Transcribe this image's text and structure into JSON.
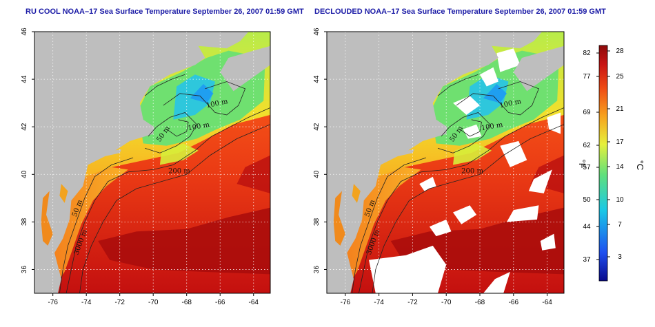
{
  "panels": [
    {
      "id": "left",
      "title": "RU COOL NOAA–17 Sea Surface Temperature September 26, 2007 01:59 GMT"
    },
    {
      "id": "right",
      "title": "DECLOUDED NOAA–17 Sea Surface Temperature September 26, 2007 01:59 GMT"
    }
  ],
  "axes": {
    "longitude_ticks": [
      "-76",
      "-74",
      "-72",
      "-70",
      "-68",
      "-66",
      "-64"
    ],
    "latitude_ticks": [
      "46",
      "44",
      "42",
      "40",
      "38",
      "36"
    ]
  },
  "contour_labels": {
    "left": [
      "100 m",
      "100 m",
      "50 m",
      "200 m",
      "50 m",
      "3000 m"
    ],
    "right": [
      "100 m",
      "100 m",
      "50 m",
      "200 m",
      "50 m",
      "3000 m"
    ]
  },
  "colorbar": {
    "fahrenheit_ticks": [
      "82",
      "77",
      "69",
      "62",
      "57",
      "50",
      "44",
      "37"
    ],
    "celsius_ticks": [
      "28",
      "25",
      "21",
      "17",
      "14",
      "10",
      "7",
      "3"
    ],
    "fahrenheit_unit": "°F",
    "celsius_unit": "°C",
    "colors": [
      "#0a0a8c",
      "#1e4ff0",
      "#19c8e6",
      "#5fe07c",
      "#e6f03c",
      "#f7a21e",
      "#ef4a14",
      "#c81414",
      "#8c0a0a"
    ]
  },
  "colors": {
    "land": "#bebebe",
    "cloud_mask": "#ffffff",
    "grid": "#ffffff"
  }
}
